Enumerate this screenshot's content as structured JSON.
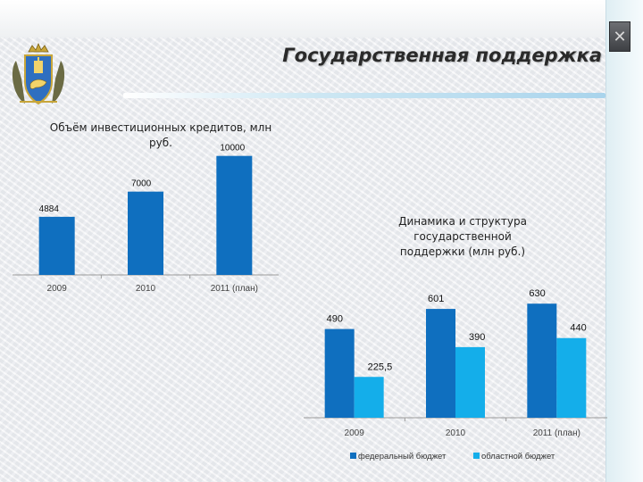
{
  "slide": {
    "title": "Государственная поддержка",
    "colors": {
      "dark_blue": "#0f6fbf",
      "light_blue": "#14aeea",
      "title": "#2a2a2a"
    },
    "icons": [
      "coat-of-arms-icon",
      "close-icon"
    ]
  },
  "chart_data": [
    {
      "type": "bar",
      "title": "Объём инвестиционных кредитов, млн руб.",
      "categories": [
        "2009",
        "2010",
        "2011 (план)"
      ],
      "values": [
        4884,
        7000,
        10000
      ],
      "data_labels": [
        "4884",
        "7000",
        "10000"
      ],
      "ylim": [
        0,
        12000
      ],
      "grid": false,
      "legend": "none"
    },
    {
      "type": "bar",
      "title": "Динамика и структура государственной поддержки (млн руб.)",
      "categories": [
        "2009",
        "2010",
        "2011 (план)"
      ],
      "series": [
        {
          "name": "федеральный бюджет",
          "values": [
            490,
            601,
            630
          ],
          "data_labels": [
            "490",
            "601",
            "630"
          ]
        },
        {
          "name": "областной бюджет",
          "values": [
            225.5,
            390,
            440
          ],
          "data_labels": [
            "225,5",
            "390",
            "440"
          ]
        }
      ],
      "ylim": [
        0,
        700
      ],
      "grid": false,
      "legend": "bottom"
    }
  ]
}
